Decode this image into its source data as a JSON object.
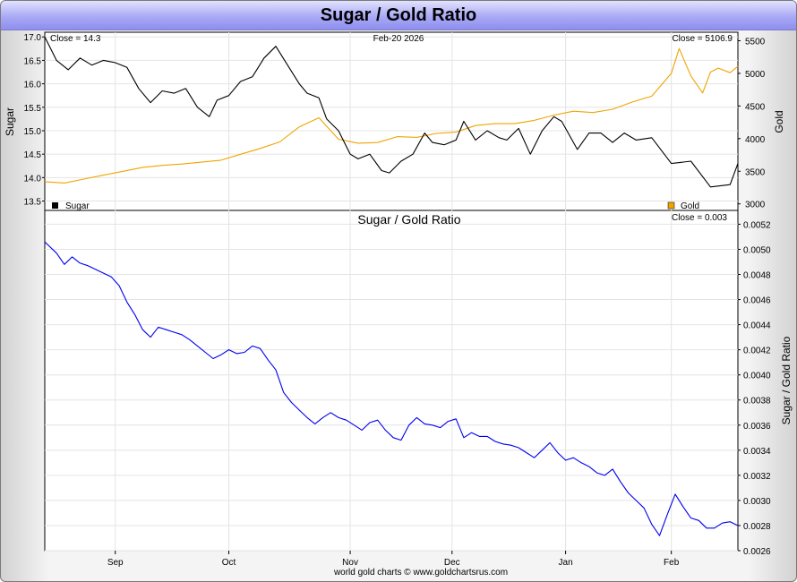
{
  "page_title": "Sugar / Gold Ratio",
  "footer": "world gold charts © www.goldchartsrus.com",
  "chart_data": [
    {
      "type": "line",
      "panel": "top",
      "date_label": "Feb-20  2026",
      "left_close_label": "Close = 14.3",
      "right_close_label": "Close = 5106.9",
      "ylabel_left": "Sugar",
      "ylabel_right": "Gold",
      "ylim_left": [
        13.3,
        17.1
      ],
      "ylim_right": [
        2900,
        5630
      ],
      "yticks_left": [
        "13.5",
        "14.0",
        "14.5",
        "15.0",
        "15.5",
        "16.0",
        "16.5",
        "17.0"
      ],
      "yticks_right": [
        "3000",
        "3500",
        "4000",
        "4500",
        "5000",
        "5500"
      ],
      "legend": [
        {
          "name": "Sugar",
          "color": "#000000"
        },
        {
          "name": "Gold",
          "color": "#f0a400"
        }
      ],
      "series": [
        {
          "name": "Sugar",
          "axis": "left",
          "color": "#000000",
          "x": [
            0,
            3,
            6,
            9,
            12,
            15,
            18,
            21,
            24,
            27,
            30,
            33,
            36,
            39,
            42,
            44,
            47,
            50,
            53,
            56,
            59,
            62,
            65,
            67,
            70,
            72,
            75,
            78,
            80,
            83,
            86,
            88,
            91,
            94,
            97,
            99,
            102,
            105,
            107,
            110,
            113,
            116,
            118,
            121,
            124,
            127,
            130,
            132,
            136,
            139,
            142,
            145,
            148,
            151,
            155,
            160,
            165,
            170,
            175,
            177
          ],
          "values": [
            17.0,
            16.5,
            16.3,
            16.55,
            16.4,
            16.5,
            16.45,
            16.35,
            15.9,
            15.6,
            15.85,
            15.8,
            15.9,
            15.5,
            15.3,
            15.65,
            15.75,
            16.05,
            16.15,
            16.55,
            16.8,
            16.4,
            16.0,
            15.8,
            15.7,
            15.25,
            15.0,
            14.5,
            14.4,
            14.5,
            14.15,
            14.1,
            14.35,
            14.5,
            14.95,
            14.75,
            14.7,
            14.8,
            15.2,
            14.8,
            15.0,
            14.85,
            14.8,
            15.05,
            14.5,
            15.0,
            15.3,
            15.2,
            14.6,
            14.95,
            14.95,
            14.75,
            14.95,
            14.8,
            14.85,
            14.3,
            14.35,
            13.8,
            13.85,
            14.3
          ]
        },
        {
          "name": "Gold",
          "axis": "right",
          "color": "#f0a400",
          "x": [
            0,
            5,
            10,
            15,
            20,
            25,
            30,
            35,
            40,
            45,
            50,
            55,
            60,
            65,
            70,
            75,
            80,
            85,
            90,
            95,
            100,
            105,
            110,
            115,
            120,
            125,
            130,
            135,
            140,
            145,
            150,
            155,
            160,
            162,
            165,
            168,
            170,
            172,
            175,
            177
          ],
          "values": [
            3340,
            3320,
            3380,
            3440,
            3500,
            3560,
            3590,
            3610,
            3640,
            3670,
            3760,
            3850,
            3950,
            4180,
            4320,
            3990,
            3930,
            3940,
            4030,
            4020,
            4080,
            4100,
            4200,
            4230,
            4230,
            4280,
            4360,
            4420,
            4400,
            4450,
            4560,
            4650,
            5000,
            5380,
            4960,
            4700,
            5020,
            5080,
            5010,
            5107
          ]
        }
      ]
    },
    {
      "type": "line",
      "panel": "bottom",
      "title": "Sugar  /  Gold Ratio",
      "close_label": "Close = 0.003",
      "ylabel": "Sugar / Gold Ratio",
      "ylim": [
        0.0026,
        0.00531
      ],
      "yticks": [
        "0.0026",
        "0.0028",
        "0.0030",
        "0.0032",
        "0.0034",
        "0.0036",
        "0.0038",
        "0.0040",
        "0.0042",
        "0.0044",
        "0.0046",
        "0.0048",
        "0.0050",
        "0.0052"
      ],
      "xlabel_ticks": [
        "Sep",
        "Oct",
        "Nov",
        "Dec",
        "Jan",
        "Feb"
      ],
      "xlabel_tick_x": [
        18,
        47,
        78,
        104,
        133,
        160
      ],
      "x_range": [
        0,
        177
      ],
      "series": [
        {
          "name": "Sugar / Gold Ratio",
          "color": "#0000ee",
          "x": [
            0,
            3,
            5,
            7,
            9,
            11,
            13,
            15,
            17,
            19,
            21,
            23,
            25,
            27,
            29,
            31,
            33,
            35,
            37,
            39,
            41,
            43,
            45,
            47,
            49,
            51,
            53,
            55,
            57,
            59,
            61,
            63,
            65,
            67,
            69,
            71,
            73,
            75,
            77,
            79,
            81,
            83,
            85,
            87,
            89,
            91,
            93,
            95,
            97,
            99,
            101,
            103,
            105,
            107,
            109,
            111,
            113,
            115,
            117,
            119,
            121,
            123,
            125,
            127,
            129,
            131,
            133,
            135,
            137,
            139,
            141,
            143,
            145,
            147,
            149,
            151,
            153,
            155,
            157,
            159,
            161,
            163,
            165,
            167,
            169,
            171,
            173,
            175,
            177
          ],
          "values": [
            0.00506,
            0.00497,
            0.00488,
            0.00494,
            0.00489,
            0.00487,
            0.00484,
            0.00481,
            0.00478,
            0.00471,
            0.00458,
            0.00448,
            0.00436,
            0.0043,
            0.00438,
            0.00436,
            0.00434,
            0.00432,
            0.00428,
            0.00423,
            0.00418,
            0.00413,
            0.00416,
            0.0042,
            0.00417,
            0.00418,
            0.00423,
            0.00421,
            0.00412,
            0.00404,
            0.00386,
            0.00378,
            0.00372,
            0.00366,
            0.00361,
            0.00366,
            0.0037,
            0.00366,
            0.00364,
            0.0036,
            0.00356,
            0.00362,
            0.00364,
            0.00356,
            0.0035,
            0.00348,
            0.0036,
            0.00366,
            0.00361,
            0.0036,
            0.00358,
            0.00363,
            0.00365,
            0.0035,
            0.00354,
            0.00351,
            0.00351,
            0.00347,
            0.00345,
            0.00344,
            0.00342,
            0.00338,
            0.00334,
            0.0034,
            0.00346,
            0.00338,
            0.00332,
            0.00334,
            0.0033,
            0.00327,
            0.00322,
            0.0032,
            0.00325,
            0.00315,
            0.00306,
            0.003,
            0.00294,
            0.00281,
            0.00272,
            0.00289,
            0.00305,
            0.00295,
            0.00286,
            0.00284,
            0.00278,
            0.00278,
            0.00282,
            0.00283,
            0.0028
          ]
        }
      ]
    }
  ]
}
